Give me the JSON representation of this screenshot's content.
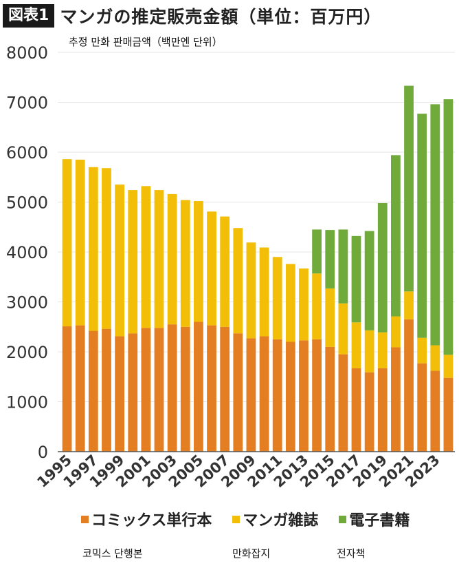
{
  "header": {
    "badge": "図表1",
    "title": "マンガの推定販売金額（単位：百万円）",
    "subtitle": "추정  만화  판매금액（백만엔  단위）"
  },
  "colors": {
    "tankobon": "#E47E22",
    "magazine": "#F2BE08",
    "digital": "#6FAA3A",
    "axis": "#555555",
    "grid": "#e4e4e4"
  },
  "notes": {
    "tankobon_ko": "코믹스  단행본",
    "magazine_ko": "만화잡지",
    "digital_ko": "전자책"
  },
  "chart_data": {
    "type": "bar",
    "stacked": true,
    "title": "マンガの推定販売金額（単位：百万円）",
    "xlabel": "",
    "ylabel": "",
    "ylim": [
      0,
      8000
    ],
    "yticks": [
      0,
      1000,
      2000,
      3000,
      4000,
      5000,
      6000,
      7000,
      8000
    ],
    "legend_position": "bottom",
    "categories": [
      "1995",
      "1996",
      "1997",
      "1998",
      "1999",
      "2000",
      "2001",
      "2002",
      "2003",
      "2004",
      "2005",
      "2006",
      "2007",
      "2008",
      "2009",
      "2010",
      "2011",
      "2012",
      "2013",
      "2014",
      "2015",
      "2016",
      "2017",
      "2018",
      "2019",
      "2020",
      "2021",
      "2022",
      "2023",
      "2024"
    ],
    "x_tick_labels": [
      "1995",
      "1997",
      "1999",
      "2001",
      "2003",
      "2005",
      "2007",
      "2009",
      "2011",
      "2013",
      "2015",
      "2017",
      "2019",
      "2021",
      "2023"
    ],
    "series": [
      {
        "name": "コミックス単行本",
        "color": "#E47E22",
        "values": [
          2510,
          2530,
          2420,
          2460,
          2310,
          2370,
          2480,
          2480,
          2550,
          2500,
          2600,
          2530,
          2500,
          2370,
          2270,
          2310,
          2250,
          2200,
          2230,
          2250,
          2100,
          1950,
          1670,
          1590,
          1670,
          2090,
          2650,
          1770,
          1620,
          1480
        ]
      },
      {
        "name": "マンガ雑誌",
        "color": "#F2BE08",
        "values": [
          3350,
          3320,
          3280,
          3220,
          3040,
          2870,
          2840,
          2760,
          2610,
          2540,
          2420,
          2280,
          2210,
          2110,
          1920,
          1780,
          1650,
          1560,
          1440,
          1320,
          1170,
          1020,
          920,
          840,
          720,
          620,
          560,
          510,
          510,
          460
        ]
      },
      {
        "name": "電子書籍",
        "color": "#6FAA3A",
        "values": [
          0,
          0,
          0,
          0,
          0,
          0,
          0,
          0,
          0,
          0,
          0,
          0,
          0,
          0,
          0,
          0,
          0,
          0,
          0,
          880,
          1170,
          1480,
          1730,
          1990,
          2590,
          3230,
          4120,
          4490,
          4830,
          5120
        ]
      }
    ]
  }
}
